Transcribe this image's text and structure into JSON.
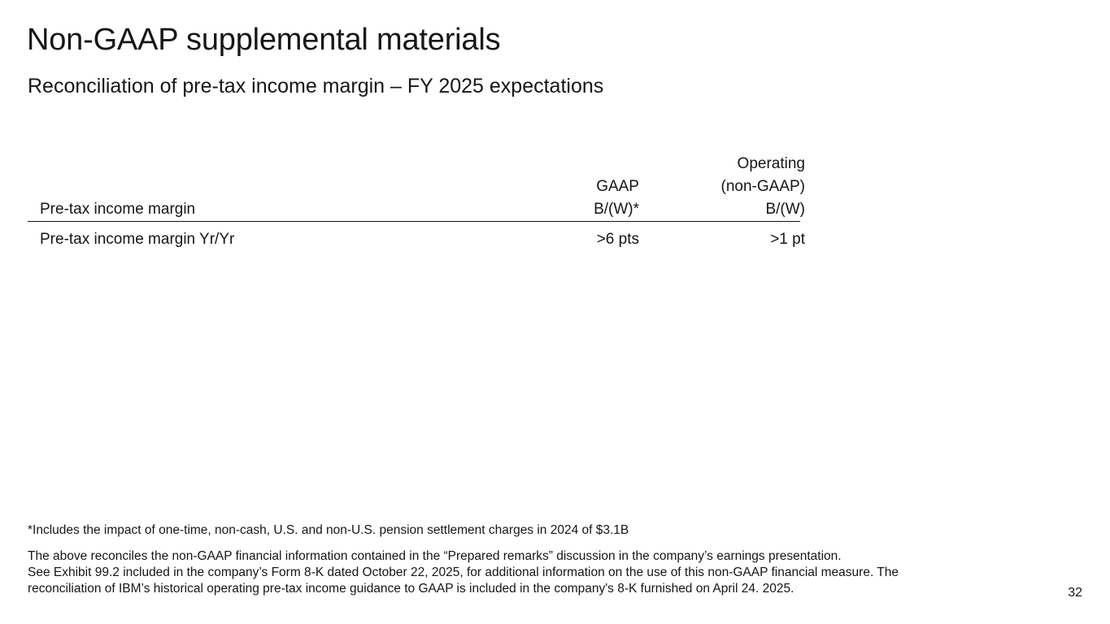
{
  "slide": {
    "title": "Non-GAAP supplemental materials",
    "subtitle": "Reconciliation of pre-tax income margin – FY 2025 expectations",
    "page_number": "32"
  },
  "table": {
    "row_header_label": "Pre-tax income margin",
    "columns": [
      {
        "line1": "",
        "line2": "GAAP",
        "line3": "B/(W)*"
      },
      {
        "line1": "Operating",
        "line2": "(non-GAAP)",
        "line3": "B/(W)"
      }
    ],
    "rows": [
      {
        "label": "Pre-tax income margin Yr/Yr",
        "values": [
          ">6 pts",
          ">1 pt"
        ]
      }
    ]
  },
  "footnotes": {
    "asterisk_note": "*Includes the impact of one-time, non-cash, U.S. and non-U.S. pension settlement charges in 2024 of $3.1B",
    "disclaimer_lines": [
      "The above reconciles the non-GAAP financial information contained in the “Prepared remarks” discussion in the company’s earnings presentation.",
      "See Exhibit 99.2 included in the company’s Form 8-K dated October 22, 2025, for additional information on the use of this non-GAAP financial measure. The",
      "reconciliation of IBM’s historical operating pre-tax income guidance to GAAP is included in the company's 8-K furnished on April 24. 2025."
    ]
  }
}
